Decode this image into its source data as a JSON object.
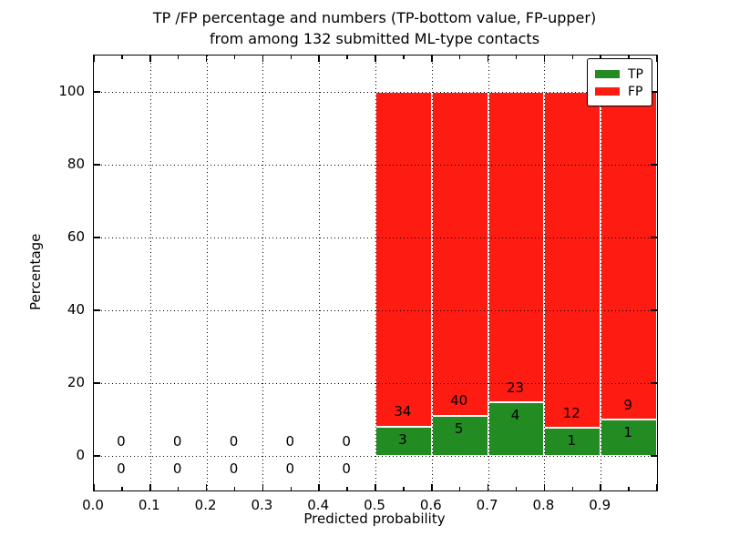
{
  "title": {
    "line1": "TP /FP percentage and numbers (TP-bottom value, FP-upper)",
    "line2": "from among 132 submitted ML-type contacts"
  },
  "axes": {
    "xlabel": "Predicted probability",
    "ylabel": "Percentage",
    "xtick_labels": [
      "0.0",
      "0.1",
      "0.2",
      "0.3",
      "0.4",
      "0.5",
      "0.6",
      "0.7",
      "0.8",
      "0.9"
    ],
    "ytick_labels": [
      "0",
      "20",
      "40",
      "60",
      "80",
      "100"
    ]
  },
  "legend": {
    "items": [
      {
        "label": "TP",
        "color": "#228b22"
      },
      {
        "label": "FP",
        "color": "#fd1b12"
      }
    ]
  },
  "chart_data": {
    "type": "bar",
    "stacked": true,
    "units": "percent of bin total",
    "title": "TP /FP percentage and numbers (TP-bottom value, FP-upper) from among 132 submitted ML-type contacts",
    "xlabel": "Predicted probability",
    "ylabel": "Percentage",
    "xlim": [
      0.0,
      1.0
    ],
    "ylim": [
      -10,
      110
    ],
    "grid": "dotted black, major ticks only",
    "legend_position": "upper right",
    "total_contacts": 132,
    "bin_starts": [
      0.0,
      0.1,
      0.2,
      0.3,
      0.4,
      0.5,
      0.6,
      0.7,
      0.8,
      0.9
    ],
    "bin_width": 0.1,
    "series": [
      {
        "name": "TP",
        "color": "#228b22",
        "counts": [
          0,
          0,
          0,
          0,
          0,
          3,
          5,
          4,
          1,
          1
        ],
        "percent": [
          0,
          0,
          0,
          0,
          0,
          8.11,
          11.11,
          14.81,
          7.69,
          10.0
        ]
      },
      {
        "name": "FP",
        "color": "#fd1b12",
        "counts": [
          0,
          0,
          0,
          0,
          0,
          34,
          40,
          23,
          12,
          9
        ],
        "percent": [
          0,
          0,
          0,
          0,
          0,
          91.89,
          88.89,
          85.19,
          92.31,
          90.0
        ]
      }
    ],
    "annotation_rule": "FP count drawn just above TP/FP boundary, TP count drawn just below it; bins 0.0-0.4 show 0 above and 0 below the 0% line"
  }
}
